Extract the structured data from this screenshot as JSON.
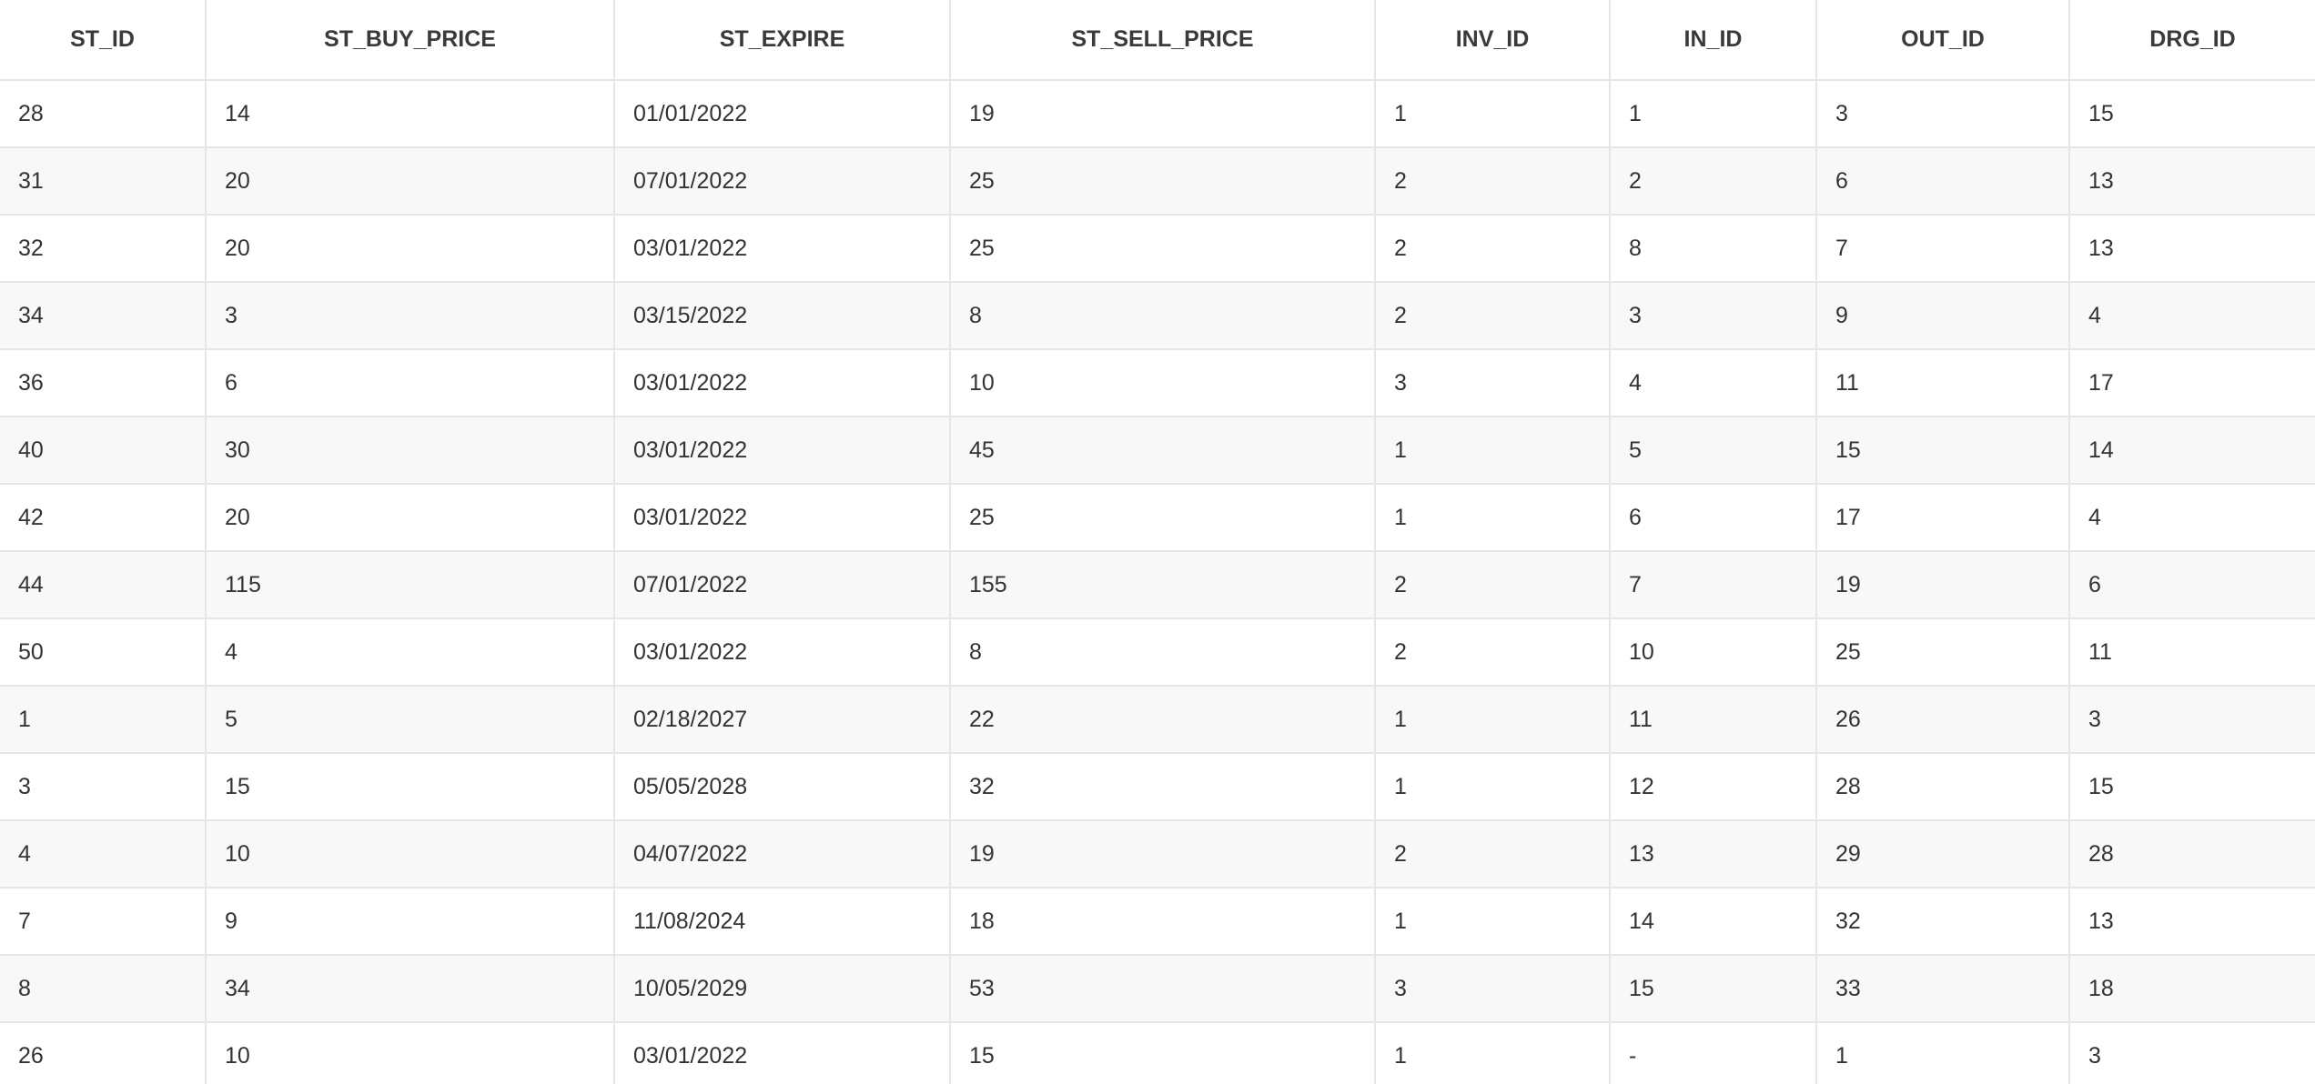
{
  "table": {
    "columns": [
      "ST_ID",
      "ST_BUY_PRICE",
      "ST_EXPIRE",
      "ST_SELL_PRICE",
      "INV_ID",
      "IN_ID",
      "OUT_ID",
      "DRG_ID"
    ],
    "rows": [
      [
        "28",
        "14",
        "01/01/2022",
        "19",
        "1",
        "1",
        "3",
        "15"
      ],
      [
        "31",
        "20",
        "07/01/2022",
        "25",
        "2",
        "2",
        "6",
        "13"
      ],
      [
        "32",
        "20",
        "03/01/2022",
        "25",
        "2",
        "8",
        "7",
        "13"
      ],
      [
        "34",
        "3",
        "03/15/2022",
        "8",
        "2",
        "3",
        "9",
        "4"
      ],
      [
        "36",
        "6",
        "03/01/2022",
        "10",
        "3",
        "4",
        "11",
        "17"
      ],
      [
        "40",
        "30",
        "03/01/2022",
        "45",
        "1",
        "5",
        "15",
        "14"
      ],
      [
        "42",
        "20",
        "03/01/2022",
        "25",
        "1",
        "6",
        "17",
        "4"
      ],
      [
        "44",
        "115",
        "07/01/2022",
        "155",
        "2",
        "7",
        "19",
        "6"
      ],
      [
        "50",
        "4",
        "03/01/2022",
        "8",
        "2",
        "10",
        "25",
        "11"
      ],
      [
        "1",
        "5",
        "02/18/2027",
        "22",
        "1",
        "11",
        "26",
        "3"
      ],
      [
        "3",
        "15",
        "05/05/2028",
        "32",
        "1",
        "12",
        "28",
        "15"
      ],
      [
        "4",
        "10",
        "04/07/2022",
        "19",
        "2",
        "13",
        "29",
        "28"
      ],
      [
        "7",
        "9",
        "11/08/2024",
        "18",
        "1",
        "14",
        "32",
        "13"
      ],
      [
        "8",
        "34",
        "10/05/2029",
        "53",
        "3",
        "15",
        "33",
        "18"
      ],
      [
        "26",
        "10",
        "03/01/2022",
        "15",
        "1",
        "-",
        "1",
        "3"
      ]
    ]
  }
}
